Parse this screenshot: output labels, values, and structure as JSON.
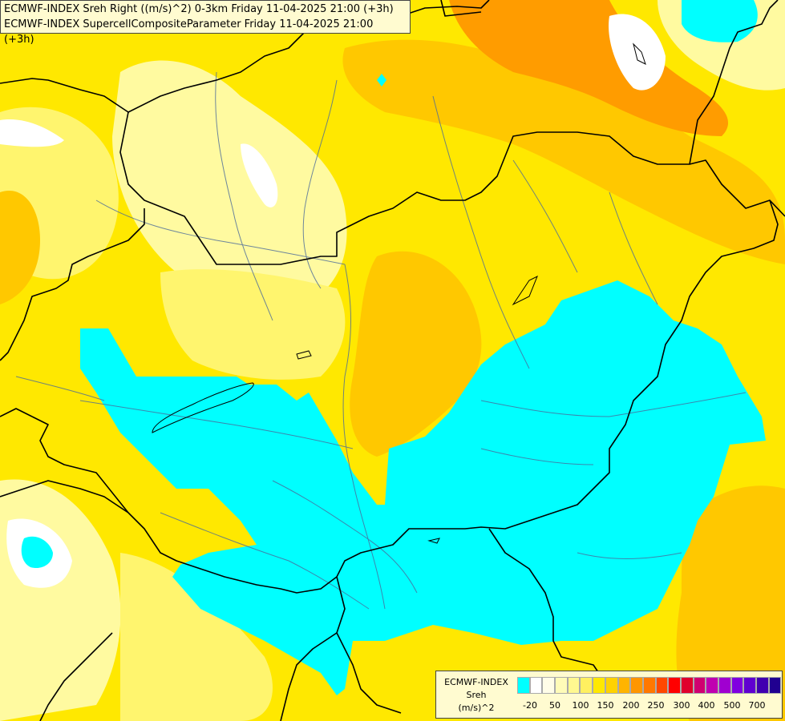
{
  "title": {
    "line1": "ECMWF-INDEX Sreh Right ((m/s)^2) 0-3km Friday 11-04-2025 21:00 (+3h)",
    "line2": "ECMWF-INDEX SupercellCompositeParameter Friday 11-04-2025 21:00 (+3h)"
  },
  "legend": {
    "line1": "ECMWF-INDEX",
    "line2": "Sreh",
    "line3": "(m/s)^2",
    "colors": [
      "#00ffff",
      "#ffffff",
      "#fffde8",
      "#fffbb8",
      "#fff890",
      "#fff060",
      "#ffe800",
      "#ffd200",
      "#ffb400",
      "#ff9600",
      "#ff7800",
      "#ff4800",
      "#ff0000",
      "#e0002c",
      "#d00070",
      "#c000b0",
      "#a000d0",
      "#8000e0",
      "#6000d0",
      "#4000b0",
      "#200090"
    ],
    "ticks": [
      "-20",
      "50",
      "100",
      "150",
      "200",
      "250",
      "300",
      "400",
      "500",
      "700"
    ]
  },
  "map_colors": {
    "sea": "#ffe800",
    "pale": "#fffaa0",
    "light": "#fff56e",
    "orange": "#ffc800",
    "deep_orange": "#ff9c00",
    "white": "#ffffff",
    "cyan": "#00ffff",
    "border": "#000000",
    "river": "#4a6a9a"
  }
}
